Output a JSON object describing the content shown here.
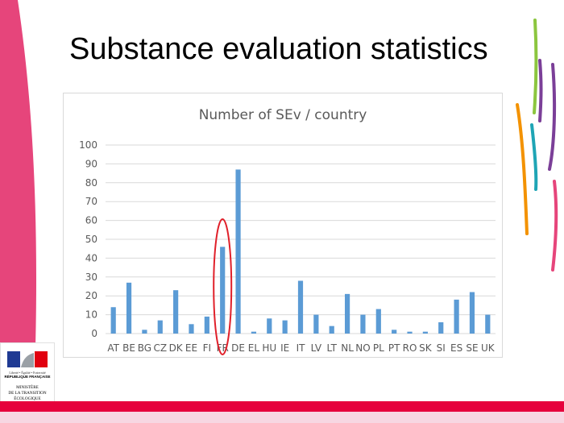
{
  "slide": {
    "title": "Substance evaluation statistics"
  },
  "logo": {
    "motto": "Liberté • Égalité • Fraternité",
    "republique": "RÉPUBLIQUE FRANÇAISE",
    "ministry": "MINISTÈRE\nDE LA TRANSITION\nÉCOLOGIQUE\nET SOLIDAIRE"
  },
  "colors": {
    "bar": "#5b9bd5",
    "highlight": "#e0202a",
    "pink": "#e6457b",
    "grid": "#d9d9d9"
  },
  "chart_data": {
    "type": "bar",
    "title": "Number of SEv / country",
    "categories": [
      "AT",
      "BE",
      "BG",
      "CZ",
      "DK",
      "EE",
      "FI",
      "FR",
      "DE",
      "EL",
      "HU",
      "IE",
      "IT",
      "LV",
      "LT",
      "NL",
      "NO",
      "PL",
      "PT",
      "RO",
      "SK",
      "SI",
      "ES",
      "SE",
      "UK"
    ],
    "values": [
      14,
      27,
      2,
      7,
      23,
      5,
      9,
      46,
      87,
      1,
      8,
      7,
      28,
      10,
      4,
      21,
      10,
      13,
      2,
      1,
      1,
      6,
      18,
      22,
      10
    ],
    "ylim": [
      0,
      100
    ],
    "yticks": [
      0,
      10,
      20,
      30,
      40,
      50,
      60,
      70,
      80,
      90,
      100
    ],
    "grid": true,
    "highlighted_category": "FR"
  }
}
